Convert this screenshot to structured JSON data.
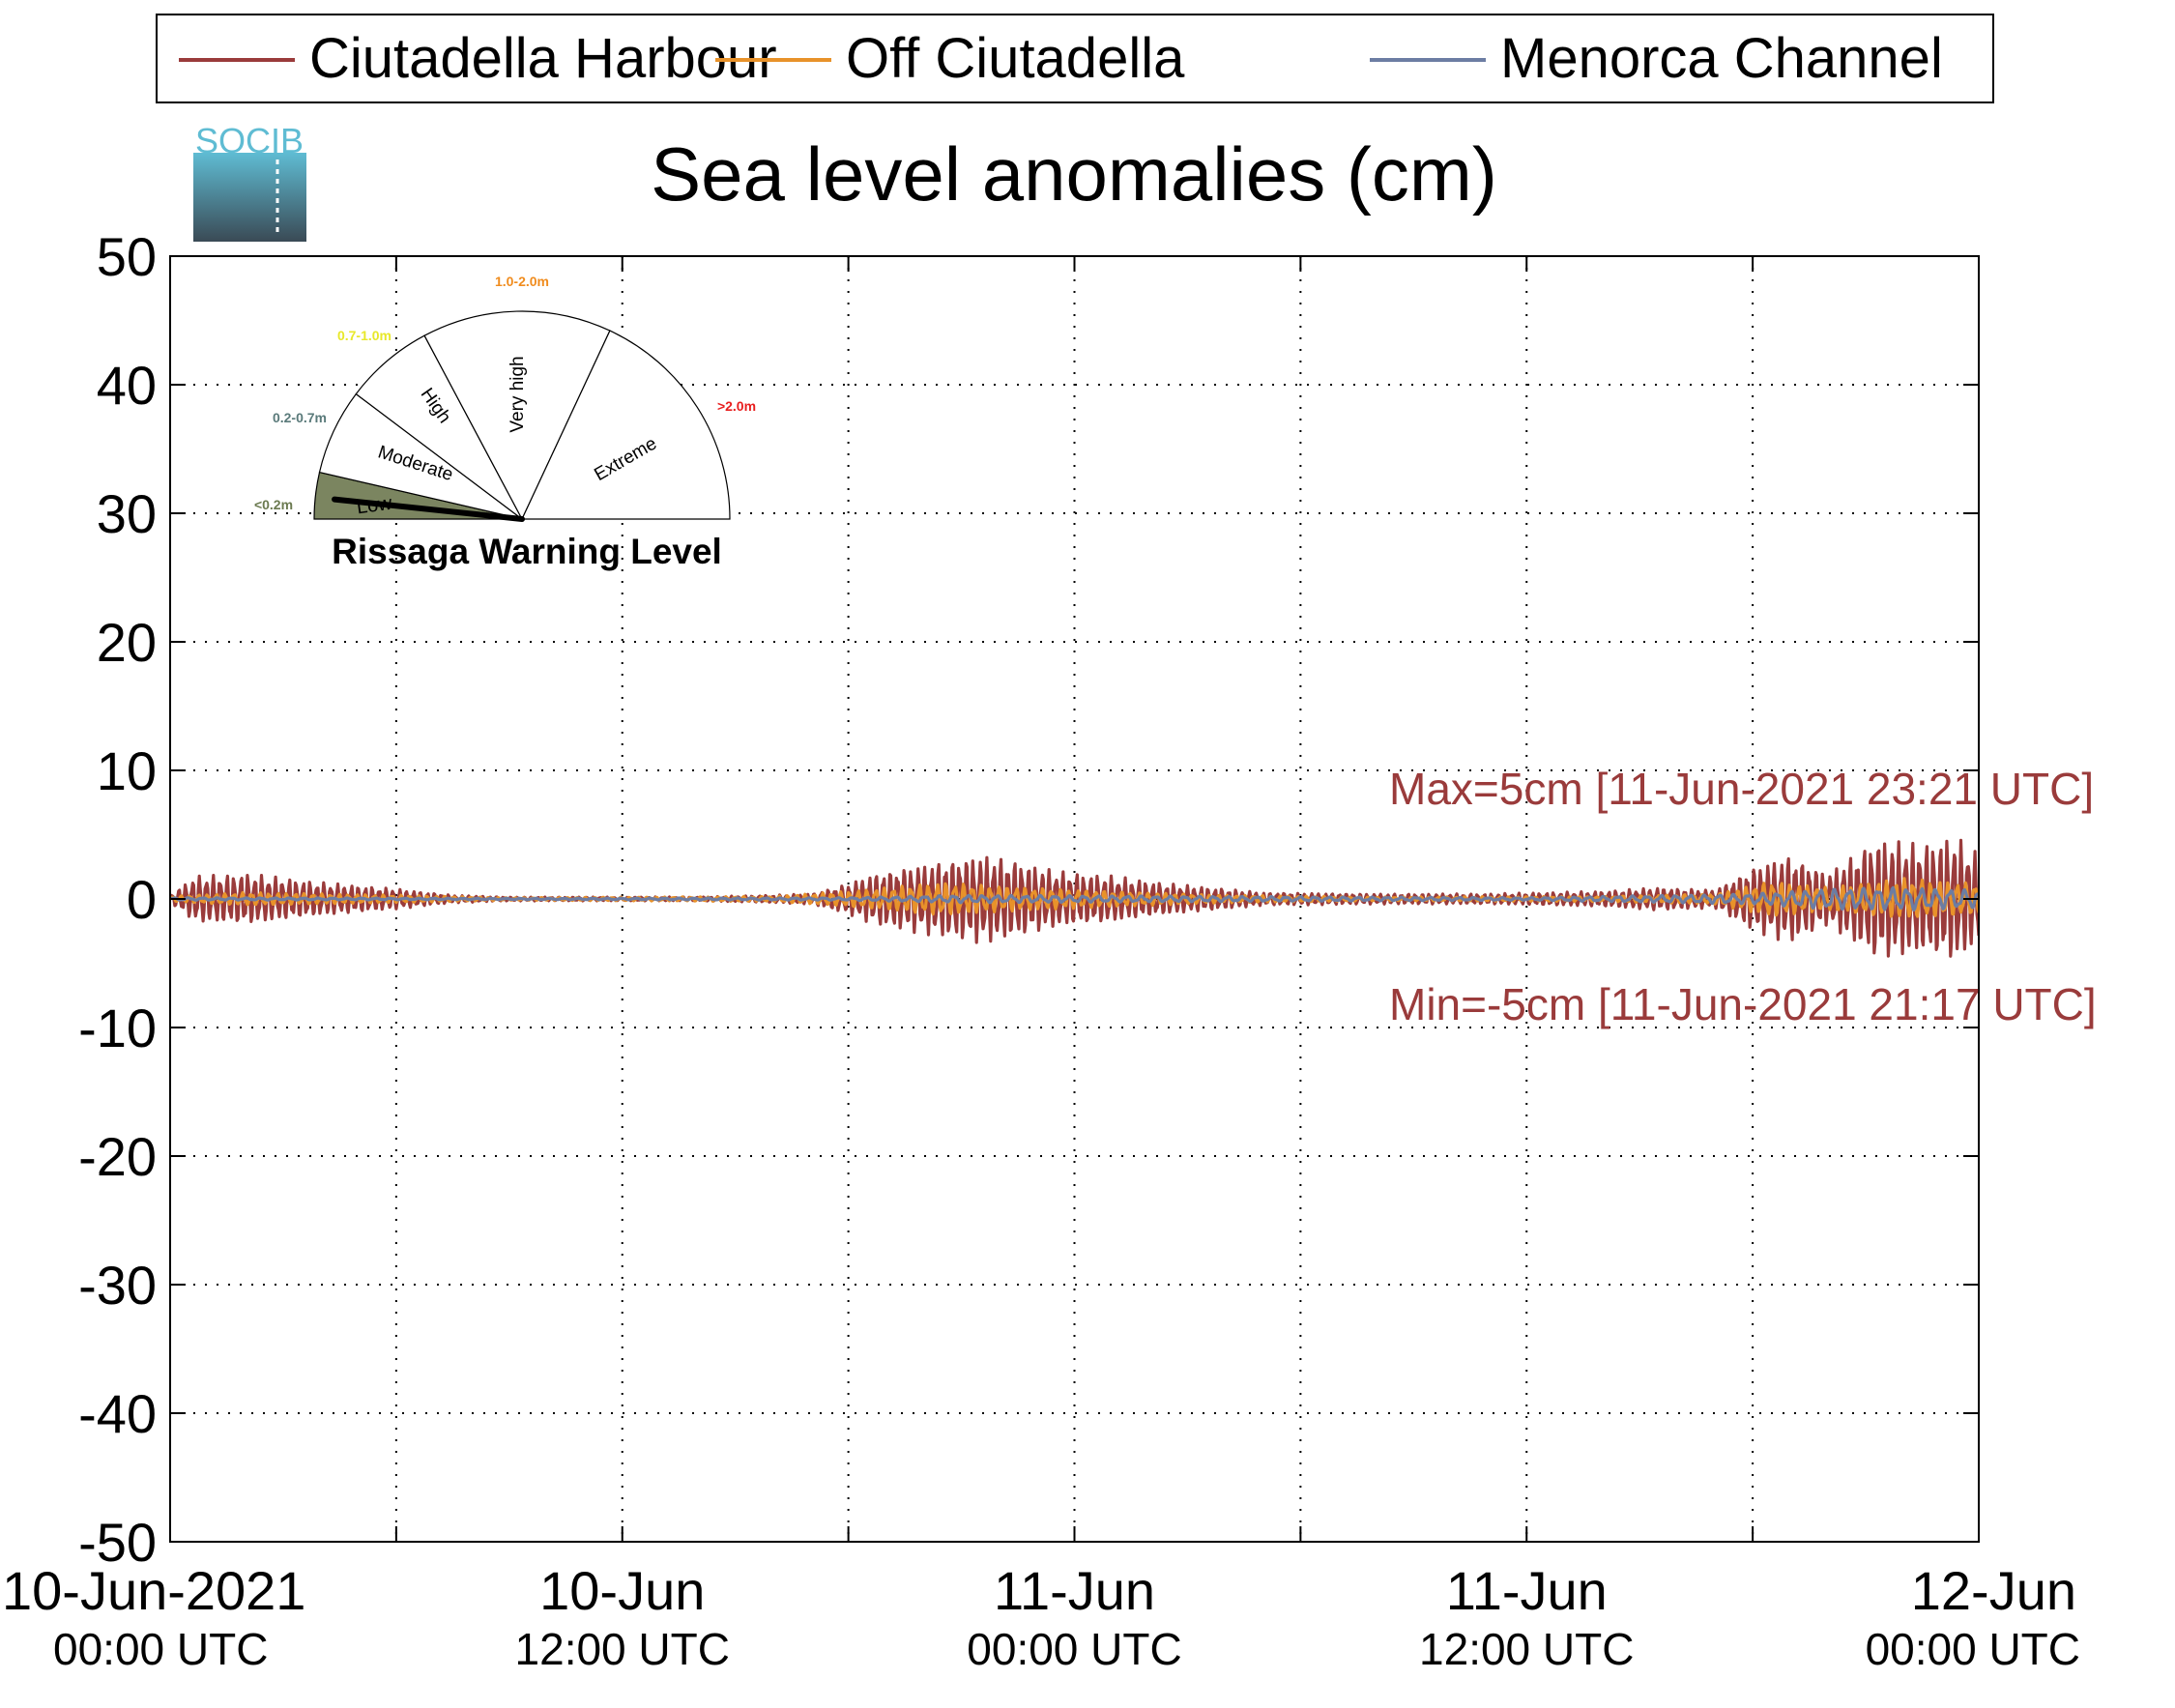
{
  "chart_data": {
    "type": "line",
    "title": "Sea level anomalies (cm)",
    "xlabel": "",
    "ylabel": "",
    "x_range": [
      "2021-06-10T00:00",
      "2021-06-12T00:00"
    ],
    "ylim": [
      -50,
      50
    ],
    "y_ticks": [
      50,
      40,
      30,
      20,
      10,
      0,
      -10,
      -20,
      -30,
      -40,
      -50
    ],
    "x_ticks": [
      {
        "line1": "10-Jun-2021",
        "line2": "00:00 UTC"
      },
      {
        "line1": "10-Jun",
        "line2": "12:00 UTC"
      },
      {
        "line1": "11-Jun",
        "line2": "00:00 UTC"
      },
      {
        "line1": "11-Jun",
        "line2": "12:00 UTC"
      },
      {
        "line1": "12-Jun",
        "line2": "00:00 UTC"
      }
    ],
    "grid": true,
    "legend_position": "top",
    "series": [
      {
        "name": "Ciutadella Harbour",
        "color": "#9a3b3b",
        "envelope": [
          [
            "2021-06-10T00:00",
            0.3
          ],
          [
            "2021-06-10T00:40",
            1.8
          ],
          [
            "2021-06-10T02:00",
            2.0
          ],
          [
            "2021-06-10T04:00",
            1.3
          ],
          [
            "2021-06-10T06:00",
            0.8
          ],
          [
            "2021-06-10T07:30",
            0.3
          ],
          [
            "2021-06-10T09:00",
            0.15
          ],
          [
            "2021-06-10T14:00",
            0.15
          ],
          [
            "2021-06-10T16:00",
            0.3
          ],
          [
            "2021-06-10T17:00",
            0.4
          ],
          [
            "2021-06-10T18:00",
            1.2
          ],
          [
            "2021-06-10T18:40",
            2.0
          ],
          [
            "2021-06-10T19:30",
            2.5
          ],
          [
            "2021-06-10T20:30",
            3.0
          ],
          [
            "2021-06-10T21:30",
            3.5
          ],
          [
            "2021-06-10T22:30",
            3.0
          ],
          [
            "2021-06-10T23:30",
            2.2
          ],
          [
            "2021-06-11T01:00",
            1.8
          ],
          [
            "2021-06-11T02:30",
            1.2
          ],
          [
            "2021-06-11T04:00",
            0.8
          ],
          [
            "2021-06-11T05:00",
            0.5
          ],
          [
            "2021-06-11T08:00",
            0.4
          ],
          [
            "2021-06-11T11:00",
            0.4
          ],
          [
            "2021-06-11T14:00",
            0.6
          ],
          [
            "2021-06-11T15:30",
            0.9
          ],
          [
            "2021-06-11T17:00",
            0.7
          ],
          [
            "2021-06-11T18:00",
            2.5
          ],
          [
            "2021-06-11T19:00",
            3.5
          ],
          [
            "2021-06-11T20:00",
            2.0
          ],
          [
            "2021-06-11T21:17",
            4.8
          ],
          [
            "2021-06-11T22:30",
            4.3
          ],
          [
            "2021-06-11T23:21",
            5.0
          ],
          [
            "2021-06-12T00:00",
            3.5
          ]
        ]
      },
      {
        "name": "Off Ciutadella",
        "color": "#e8922a",
        "envelope": [
          [
            "2021-06-10T00:00",
            0.2
          ],
          [
            "2021-06-10T02:00",
            0.5
          ],
          [
            "2021-06-10T06:00",
            0.3
          ],
          [
            "2021-06-10T09:00",
            0.1
          ],
          [
            "2021-06-10T16:00",
            0.2
          ],
          [
            "2021-06-10T18:00",
            0.6
          ],
          [
            "2021-06-10T20:30",
            1.3
          ],
          [
            "2021-06-10T22:00",
            1.0
          ],
          [
            "2021-06-11T01:00",
            0.6
          ],
          [
            "2021-06-11T04:00",
            0.3
          ],
          [
            "2021-06-11T08:00",
            0.15
          ],
          [
            "2021-06-11T14:00",
            0.2
          ],
          [
            "2021-06-11T17:00",
            0.4
          ],
          [
            "2021-06-11T18:30",
            1.4
          ],
          [
            "2021-06-11T20:00",
            0.9
          ],
          [
            "2021-06-11T22:00",
            1.6
          ],
          [
            "2021-06-12T00:00",
            1.2
          ]
        ]
      },
      {
        "name": "Menorca Channel",
        "color": "#6c7da3",
        "envelope": [
          [
            "2021-06-10T00:00",
            0.1
          ],
          [
            "2021-06-10T09:00",
            0.05
          ],
          [
            "2021-06-10T18:00",
            0.1
          ],
          [
            "2021-06-10T21:00",
            0.3
          ],
          [
            "2021-06-11T12:00",
            0.1
          ],
          [
            "2021-06-11T18:00",
            0.4
          ],
          [
            "2021-06-11T20:00",
            0.8
          ],
          [
            "2021-06-11T22:00",
            0.9
          ],
          [
            "2021-06-12T00:00",
            0.7
          ]
        ]
      }
    ],
    "annotations": {
      "max_text": "Max=5cm [11-Jun-2021 23:21 UTC]",
      "min_text": "Min=-5cm [11-Jun-2021 21:17 UTC]"
    },
    "warning_gauge": {
      "title": "Rissaga Warning Level",
      "sectors": [
        {
          "label": "Low",
          "range": "<0.2m",
          "color": "#7b8560",
          "range_color": "#6b7a50",
          "active": true
        },
        {
          "label": "Moderate",
          "range": "0.2-0.7m",
          "color": "#ffffff",
          "range_color": "#5a7a7a",
          "active": false
        },
        {
          "label": "High",
          "range": "0.7-1.0m",
          "color": "#ffffff",
          "range_color": "#e8e82a",
          "active": false
        },
        {
          "label": "Very high",
          "range": "1.0-2.0m",
          "color": "#ffffff",
          "range_color": "#f08c1e",
          "active": false
        },
        {
          "label": "Extreme",
          "range": ">2.0m",
          "color": "#ffffff",
          "range_color": "#e81e1e",
          "active": false
        }
      ],
      "needle_value": "low"
    },
    "logo_text": "SOCIB"
  }
}
